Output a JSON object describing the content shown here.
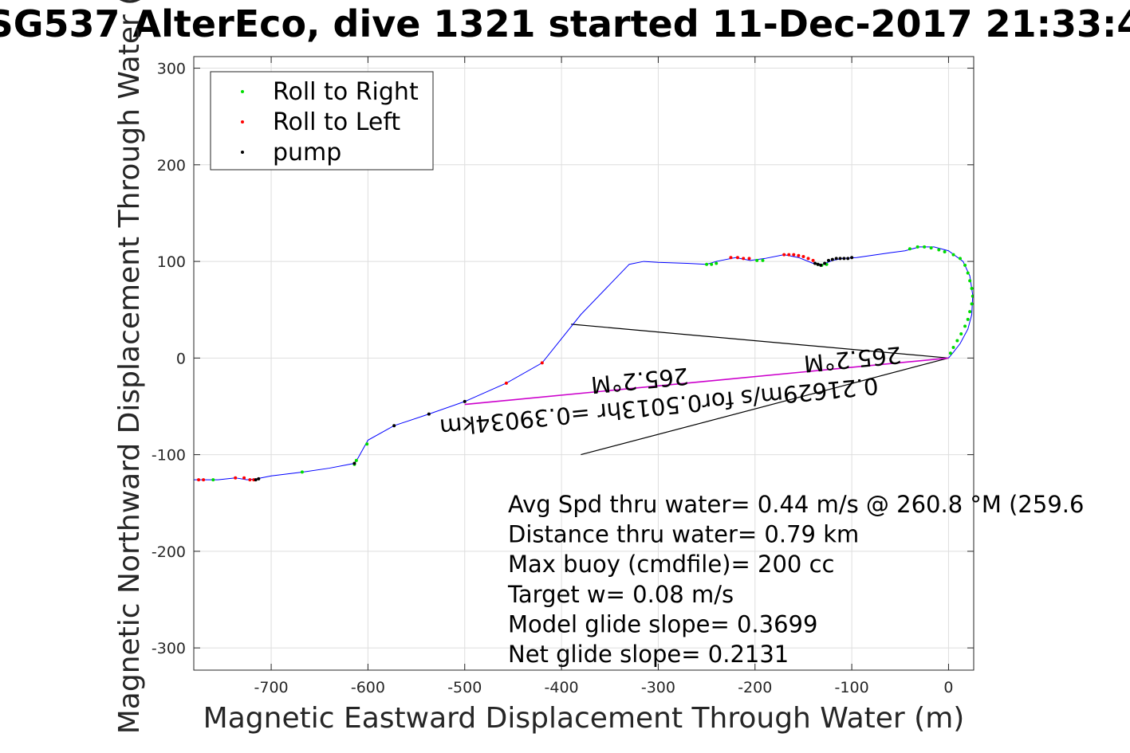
{
  "chart_data": {
    "type": "scatter",
    "title": "SG537 AlterEco, dive 1321 started 11-Dec-2017 21:33:4",
    "xlabel": "Magnetic Eastward Displacement Through Water (m)",
    "ylabel": "Magnetic Northward Displacement Through Water (",
    "xlim": [
      -780,
      26
    ],
    "ylim": [
      -323,
      312
    ],
    "xticks": [
      -700,
      -600,
      -500,
      -400,
      -300,
      -200,
      -100,
      0
    ],
    "yticks": [
      -300,
      -200,
      -100,
      0,
      100,
      200,
      300
    ],
    "xtick_labels": [
      "-700",
      "-600",
      "-500",
      "-400",
      "-300",
      "-200",
      "-100",
      "0"
    ],
    "ytick_labels": [
      "-300",
      "-200",
      "-100",
      "0",
      "100",
      "200",
      "300"
    ],
    "grid": true,
    "legend_position": "top-left",
    "legend": [
      {
        "label": "Roll to Right",
        "color": "#00dd00"
      },
      {
        "label": "Roll to Left",
        "color": "#ff0000"
      },
      {
        "label": "pump",
        "color": "#000000"
      }
    ],
    "track": {
      "color": "#0000ff",
      "x": [
        -780,
        -765,
        -755,
        -737,
        -725,
        -715,
        -700,
        -667,
        -640,
        -614,
        -610,
        -600,
        -573,
        -537,
        -500,
        -457,
        -420,
        -380,
        -330,
        -315,
        -300,
        -270,
        -250,
        -240,
        -220,
        -205,
        -190,
        -170,
        -155,
        -140,
        -130,
        -120,
        -110,
        -95,
        -60,
        -45,
        -30,
        -15,
        0,
        15,
        22,
        25,
        24,
        20,
        12,
        5,
        0
      ],
      "y": [
        -126,
        -126,
        -126,
        -124,
        -126,
        -125,
        -122,
        -118,
        -114,
        -109,
        -103,
        -85,
        -70,
        -58,
        -45,
        -26,
        -5,
        45,
        97,
        100,
        99,
        98,
        97,
        100,
        104,
        101,
        103,
        107,
        104,
        98,
        97,
        101,
        103,
        104,
        109,
        111,
        115,
        115,
        111,
        100,
        85,
        65,
        45,
        30,
        15,
        6,
        0
      ]
    },
    "roll_right": {
      "x": [
        -760,
        -668,
        -614,
        -612,
        -601,
        -250,
        -245,
        -240,
        -198,
        -192,
        -135,
        -131,
        -126,
        -40,
        -32,
        -25,
        -18,
        -10,
        -4,
        5,
        12,
        17,
        20,
        22,
        24,
        25,
        24,
        22,
        20,
        17,
        13,
        9,
        5,
        2
      ],
      "y": [
        -126,
        -118,
        -110,
        -106,
        -89,
        97,
        97,
        98,
        101,
        101,
        97,
        96,
        97,
        113,
        115,
        115,
        114,
        112,
        110,
        107,
        103,
        96,
        88,
        80,
        72,
        64,
        56,
        48,
        40,
        33,
        25,
        18,
        11,
        5
      ]
    },
    "roll_left": {
      "x": [
        -775,
        -770,
        -737,
        -728,
        -722,
        -718,
        -457,
        -420,
        -225,
        -218,
        -212,
        -206,
        -170,
        -165,
        -160,
        -155,
        -150,
        -145,
        -140
      ],
      "y": [
        -126,
        -126,
        -124,
        -124,
        -126,
        -126,
        -26,
        -5,
        104,
        104,
        103,
        103,
        107,
        107,
        107,
        106,
        105,
        103,
        101
      ],
      "color": "#ff0000"
    },
    "pump": {
      "x": [
        -716,
        -713,
        -614,
        -573,
        -537,
        -500,
        -138,
        -135,
        -132,
        -128,
        -124,
        -120,
        -116,
        -112,
        -108,
        -104,
        -100
      ],
      "y": [
        -126,
        -125,
        -109,
        -70,
        -58,
        -45,
        98,
        97,
        96,
        98,
        101,
        102,
        103,
        103,
        103,
        103,
        104
      ]
    },
    "current_vector": {
      "color": "#cc00cc",
      "x": [
        -500,
        0
      ],
      "y": [
        -48,
        0
      ]
    },
    "current_wedge": {
      "color": "#000000",
      "x": [
        -390,
        0,
        -380
      ],
      "y": [
        35,
        0,
        -100
      ]
    },
    "current_labels": [
      {
        "text": "0.21629m/s for0.5013hr =0.39034km",
        "x": -300,
        "y": -42
      },
      {
        "text": "265.2°M",
        "x": -320,
        "y": -15
      },
      {
        "text": "265.2°M",
        "x": -100,
        "y": 7
      }
    ],
    "annotations": [
      "Avg Spd thru water=  0.44 m/s @ 260.8 °M (259.6",
      "Distance thru water=  0.79 km",
      "Max buoy (cmdfile)= 200 cc",
      "Target w= 0.08 m/s",
      "Model glide slope= 0.3699",
      "Net glide slope= 0.2131"
    ]
  }
}
